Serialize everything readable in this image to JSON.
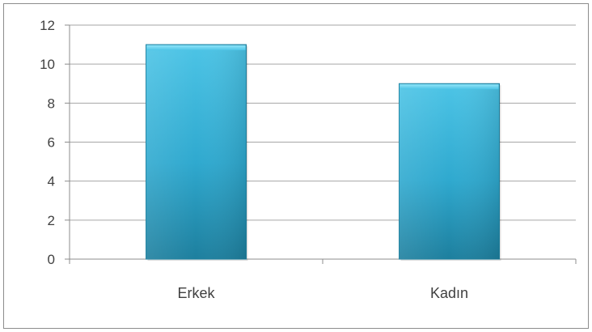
{
  "chart_data": {
    "type": "bar",
    "title": "",
    "xlabel": "",
    "ylabel": "",
    "categories": [
      "Erkek",
      "Kadın"
    ],
    "values": [
      11,
      9
    ],
    "ylim": [
      0,
      12
    ],
    "yticks": [
      0,
      2,
      4,
      6,
      8,
      10,
      12
    ],
    "grid": true,
    "legend": "none",
    "colors": {
      "bar_light": "#4cc4e6",
      "bar_mid": "#2fa9cf",
      "bar_dark": "#1d7f9e",
      "grid": "#a6a6a6",
      "axis": "#8c8c8c",
      "text": "#404040"
    }
  }
}
